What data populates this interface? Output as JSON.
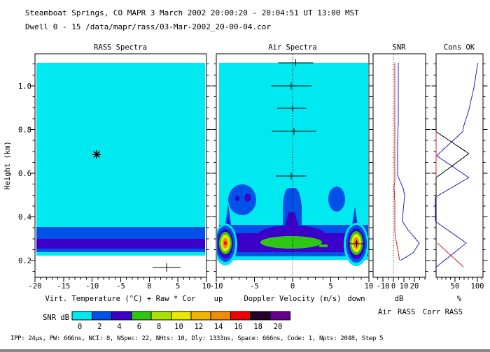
{
  "header": {
    "line1": "Steamboat Springs, CO  MAPR   3 March 2002  20:00:20 - 20:04:51 UT   13:00 MST",
    "line2": "Dwell  0 - 15   /data/mapr/rass/03-Mar-2002_20-00-04.cor"
  },
  "yaxis": {
    "label": "Height (km)",
    "ticks": [
      "0.2",
      "0.4",
      "0.6",
      "0.8",
      "1.0"
    ]
  },
  "panels": {
    "rass": {
      "title": "RASS Spectra",
      "xlabel": "Virt. Temperature (°C)  + Raw  * Cor",
      "xticks": [
        "-20",
        "-15",
        "-10",
        "-5",
        "0",
        "5",
        "10"
      ]
    },
    "air": {
      "title": "Air Spectra",
      "xlabel": "Doppler Velocity (m/s)",
      "up": "up",
      "down": "down",
      "xticks": [
        "-10",
        "-5",
        "0",
        "5",
        "10"
      ]
    },
    "snr": {
      "title": "SNR",
      "xlabel": "dB",
      "xticks": [
        "-10",
        "0",
        "10",
        "20"
      ]
    },
    "cons": {
      "title": "Cons OK",
      "xlabel": "%",
      "xticks": [
        "50",
        "100"
      ]
    }
  },
  "colorbar": {
    "label": "SNR dB",
    "tick_labels": [
      "0",
      "2",
      "4",
      "6",
      "8",
      "10",
      "12",
      "14",
      "16",
      "18",
      "20"
    ],
    "colors": [
      "#00E8F0",
      "#0051E8",
      "#3C00C8",
      "#2EC814",
      "#A8E000",
      "#E8E800",
      "#F0B400",
      "#F08C00",
      "#F00000",
      "#250028",
      "#66008C"
    ]
  },
  "colors": {
    "air": "#2222CC",
    "rass": "#D02020",
    "corr": "#000000"
  },
  "legend": {
    "items": [
      {
        "label": "Air"
      },
      {
        "label": "RASS"
      },
      {
        "label": "Corr RASS"
      }
    ]
  },
  "footer": "IPP:  24µs,  PW:  666ns,  NCI: 8,  NSpec: 22, NHts: 10,  Dly: 1333ns,  Space:  666ns,  Code: 1,  Npts: 2048,  Step 5",
  "chart_data": [
    {
      "type": "heatmap",
      "title": "RASS Spectra",
      "xlabel": "Virt. Temperature (°C)",
      "ylabel": "Height (km)",
      "xlim": [
        -20,
        10
      ],
      "ylim": [
        0.12,
        1.15
      ],
      "snr_layers_km": [
        {
          "height_range": [
            0.22,
            1.1
          ],
          "snr_db": "0-2"
        },
        {
          "height_range": [
            0.3,
            0.35
          ],
          "snr_db": "2-4"
        },
        {
          "height_range": [
            0.25,
            0.3
          ],
          "snr_db": "4-6"
        },
        {
          "height_range": [
            0.24,
            0.25
          ],
          "snr_db": "2-4"
        },
        {
          "height_range": [
            0.22,
            0.24
          ],
          "snr_db": "0-2"
        }
      ],
      "markers": {
        "raw": {
          "temp_c": 3.0,
          "height_km": 0.168,
          "bar_c": [
            0.6,
            5.5
          ]
        },
        "cor": {
          "temp_c": -9.2,
          "height_km": 0.686
        }
      }
    },
    {
      "type": "heatmap",
      "title": "Air Spectra",
      "xlabel": "Doppler Velocity (m/s)",
      "xlim": [
        -10,
        10
      ],
      "ylim": [
        0.12,
        1.15
      ],
      "zero_line_ms": 0,
      "markers": [
        {
          "height_km": 1.105,
          "vel_ms": 0.4,
          "bar_ms": [
            -1.9,
            2.7
          ]
        },
        {
          "height_km": 1.0,
          "vel_ms": -0.2,
          "bar_ms": [
            -2.8,
            2.5
          ]
        },
        {
          "height_km": 0.898,
          "vel_ms": 0.0,
          "bar_ms": [
            -2.0,
            1.8
          ]
        },
        {
          "height_km": 0.792,
          "vel_ms": 0.2,
          "bar_ms": [
            -2.7,
            3.1
          ]
        },
        {
          "height_km": 0.587,
          "vel_ms": -0.2,
          "bar_ms": [
            -2.2,
            1.8
          ]
        },
        {
          "height_km": 0.277,
          "vel_ms": 8.4,
          "bar_ms": [
            7.4,
            9.4
          ]
        }
      ],
      "features": [
        {
          "name": "rass-acoustic-peak",
          "vel_ms": -8.7,
          "height_km": 0.28,
          "snr_db": ">16"
        },
        {
          "name": "rass-acoustic-peak",
          "vel_ms": 8.4,
          "height_km": 0.28,
          "snr_db": ">16"
        },
        {
          "name": "clear-air-peak",
          "vel_ms": 0,
          "height_km": 0.29,
          "snr_db": "6-8"
        },
        {
          "name": "updraft-plume",
          "vel_ms": 0,
          "height_km_range": [
            0.3,
            0.48
          ],
          "snr_db": "2-6"
        },
        {
          "name": "turbulence-blob",
          "vel_ms": -6.6,
          "height_km": 0.48,
          "snr_db": "2-4"
        },
        {
          "name": "turbulence-blob",
          "vel_ms": 5.8,
          "height_km": 0.48,
          "snr_db": "2-4"
        }
      ]
    },
    {
      "type": "line",
      "title": "SNR",
      "xlabel": "dB",
      "xlim": [
        -19,
        30
      ],
      "series": [
        {
          "name": "Air",
          "color_key": "air",
          "segments": [
            [
              [
                1.105,
                4.7
              ],
              [
                0.84,
                4.7
              ],
              [
                0.73,
                4.0
              ],
              [
                0.59,
                4.0
              ],
              [
                0.56,
                6.7
              ],
              [
                0.53,
                9.3
              ],
              [
                0.5,
                10.7
              ],
              [
                0.46,
                10.0
              ],
              [
                0.43,
                9.3
              ],
              [
                0.38,
                8.7
              ],
              [
                0.34,
                14.0
              ],
              [
                0.28,
                24.7
              ],
              [
                0.235,
                18.7
              ],
              [
                0.2,
                6.7
              ]
            ]
          ]
        },
        {
          "name": "RASS",
          "color_key": "rass",
          "segments": [
            [
              [
                1.105,
                1.3
              ],
              [
                0.56,
                1.3
              ],
              [
                0.54,
                0.7
              ],
              [
                0.46,
                1.3
              ],
              [
                0.33,
                1.3
              ],
              [
                0.27,
                3.3
              ],
              [
                0.2,
                6.0
              ]
            ]
          ]
        }
      ]
    },
    {
      "type": "line",
      "title": "Cons OK",
      "xlabel": "%",
      "xlim": [
        -8,
        113
      ],
      "series": [
        {
          "name": "Air",
          "color_key": "air",
          "segments": [
            [
              [
                1.105,
                101
              ],
              [
                0.99,
                92
              ],
              [
                0.89,
                81
              ],
              [
                0.82,
                70
              ],
              [
                0.79,
                67
              ],
              [
                0.68,
                9
              ],
              [
                0.58,
                81
              ],
              [
                0.49,
                6
              ],
              [
                0.38,
                6
              ],
              [
                0.28,
                75
              ],
              [
                0.17,
                8
              ]
            ]
          ]
        },
        {
          "name": "Corr RASS",
          "color_key": "corr",
          "segments": [
            [
              [
                0.79,
                8
              ],
              [
                0.69,
                81
              ],
              [
                0.58,
                8
              ]
            ]
          ]
        },
        {
          "name": "RASS",
          "color_key": "rass",
          "segments": [
            [
              [
                0.79,
                8
              ],
              [
                0.58,
                8
              ]
            ],
            [
              [
                0.28,
                11
              ],
              [
                0.17,
                69
              ]
            ]
          ]
        }
      ]
    }
  ]
}
